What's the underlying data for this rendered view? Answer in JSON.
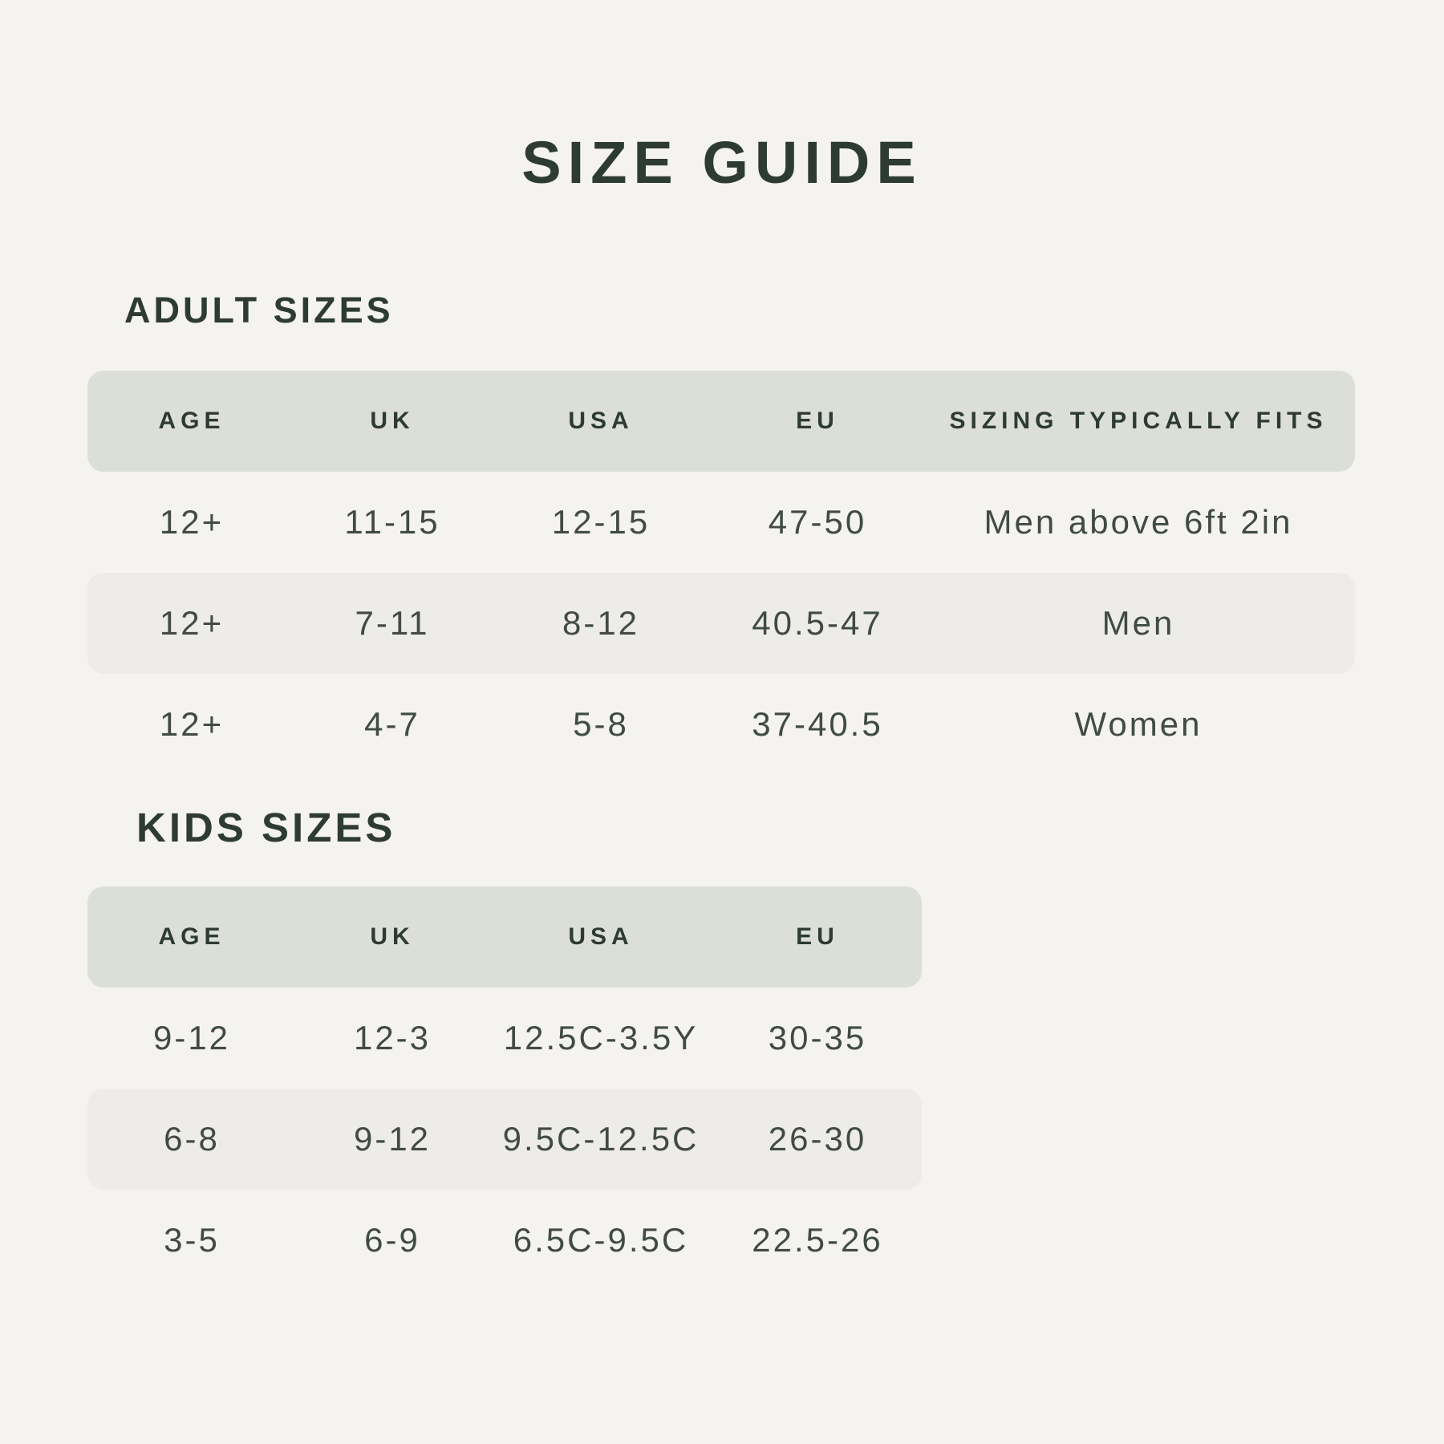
{
  "page": {
    "title": "SIZE GUIDE",
    "background_color": "#f4f3ef",
    "header_band_color": "#dcdfd8",
    "alt_row_band_color": "#edece8",
    "heading_text_color": "#2e3b34",
    "body_text_color": "#414b44"
  },
  "adult": {
    "heading": "ADULT SIZES",
    "columns": [
      "AGE",
      "UK",
      "USA",
      "EU",
      "SIZING TYPICALLY FITS"
    ],
    "rows": [
      [
        "12+",
        "11-15",
        "12-15",
        "47-50",
        "Men above 6ft 2in"
      ],
      [
        "12+",
        "7-11",
        "8-12",
        "40.5-47",
        "Men"
      ],
      [
        "12+",
        "4-7",
        "5-8",
        "37-40.5",
        "Women"
      ]
    ]
  },
  "kids": {
    "heading": "KIDS SIZES",
    "columns": [
      "AGE",
      "UK",
      "USA",
      "EU"
    ],
    "rows": [
      [
        "9-12",
        "12-3",
        "12.5C-3.5Y",
        "30-35"
      ],
      [
        "6-8",
        "9-12",
        "9.5C-12.5C",
        "26-30"
      ],
      [
        "3-5",
        "6-9",
        "6.5C-9.5C",
        "22.5-26"
      ]
    ]
  }
}
